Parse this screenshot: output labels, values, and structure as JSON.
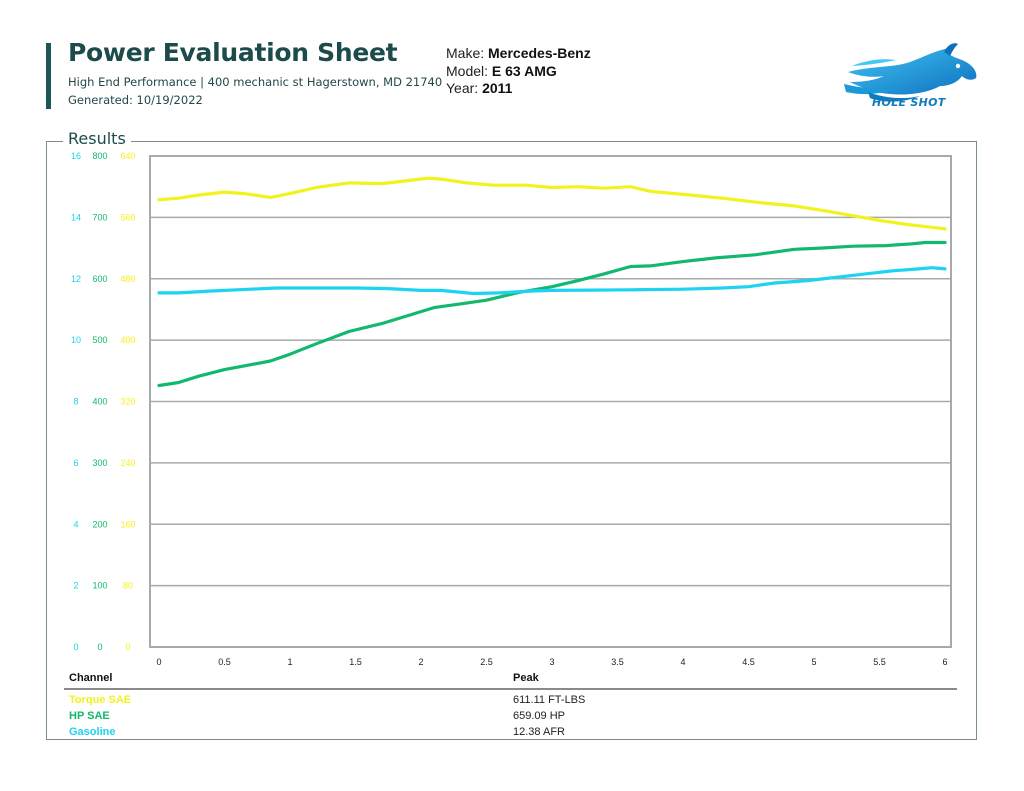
{
  "header": {
    "title": "Power Evaluation Sheet",
    "subtitle": "High End Performance | 400 mechanic st Hagerstown, MD 21740",
    "generated": "Generated: 10/19/2022"
  },
  "vehicle": {
    "make_label": "Make:",
    "make": "Mercedes-Benz",
    "model_label": "Model:",
    "model": "E 63 AMG",
    "year_label": "Year:",
    "year": "2011"
  },
  "logo": {
    "text": "HOLE SHOT",
    "icon": "horse-head-logo"
  },
  "section": {
    "label": "Results"
  },
  "colors": {
    "torque": "#f2f21e",
    "hp": "#12b86e",
    "afr": "#1ed3f2",
    "grid": "#a9a9a9",
    "frame": "#7a8e8e",
    "title": "#1d4b4b"
  },
  "chart_data": {
    "type": "line",
    "x_ticks": [
      "0",
      "0.5",
      "1",
      "1.5",
      "2",
      "2.5",
      "3",
      "3.5",
      "4",
      "4.5",
      "5",
      "5.5",
      "6"
    ],
    "xlim": [
      0,
      6
    ],
    "axes": [
      {
        "id": "afr",
        "ticks": [
          "0",
          "2",
          "4",
          "6",
          "8",
          "10",
          "12",
          "14",
          "16"
        ],
        "ylim": [
          0,
          16
        ],
        "color": "#1ed3f2"
      },
      {
        "id": "hp",
        "ticks": [
          "0",
          "100",
          "200",
          "300",
          "400",
          "500",
          "600",
          "700",
          "800"
        ],
        "ylim": [
          0,
          800
        ],
        "color": "#12b86e"
      },
      {
        "id": "torque",
        "ticks": [
          "0",
          "80",
          "160",
          "240",
          "320",
          "400",
          "480",
          "560",
          "640"
        ],
        "ylim": [
          0,
          640
        ],
        "color": "#f2f21e"
      }
    ],
    "series": [
      {
        "name": "Torque SAE",
        "axis": "torque",
        "color": "#f2f21e",
        "x": [
          0,
          0.15,
          0.3,
          0.5,
          0.65,
          0.85,
          1.0,
          1.2,
          1.45,
          1.7,
          1.9,
          2.05,
          2.15,
          2.35,
          2.55,
          2.8,
          3.0,
          3.2,
          3.4,
          3.6,
          3.75,
          4.0,
          4.3,
          4.6,
          4.85,
          5.1,
          5.3,
          5.5,
          5.7,
          5.9,
          6.0
        ],
        "y": [
          583,
          585,
          589,
          593,
          591,
          586,
          591,
          599,
          605,
          604,
          608,
          611,
          610,
          605,
          602,
          602,
          599,
          600,
          598,
          600,
          594,
          590,
          585,
          579,
          575,
          568,
          562,
          556,
          551,
          547,
          545
        ]
      },
      {
        "name": "HP SAE",
        "axis": "hp",
        "color": "#12b86e",
        "x": [
          0,
          0.15,
          0.3,
          0.5,
          0.65,
          0.85,
          1.0,
          1.2,
          1.45,
          1.7,
          1.9,
          2.1,
          2.3,
          2.5,
          2.75,
          3.0,
          3.2,
          3.4,
          3.6,
          3.75,
          4.0,
          4.25,
          4.55,
          4.85,
          5.05,
          5.3,
          5.55,
          5.75,
          5.85,
          6.0
        ],
        "y": [
          426,
          431,
          441,
          452,
          458,
          466,
          477,
          494,
          514,
          527,
          540,
          553,
          559,
          565,
          578,
          587,
          597,
          608,
          620,
          621,
          628,
          634,
          639,
          648,
          650,
          653,
          654,
          657,
          659,
          659
        ]
      },
      {
        "name": "Gasoline",
        "axis": "afr",
        "color": "#1ed3f2",
        "x": [
          0,
          0.15,
          0.4,
          0.7,
          0.9,
          1.2,
          1.5,
          1.75,
          2.0,
          2.15,
          2.4,
          2.6,
          2.85,
          3.0,
          3.3,
          3.6,
          4.0,
          4.3,
          4.5,
          4.7,
          4.95,
          5.2,
          5.4,
          5.6,
          5.8,
          5.9,
          6.0
        ],
        "y": [
          11.54,
          11.54,
          11.6,
          11.66,
          11.7,
          11.7,
          11.7,
          11.68,
          11.62,
          11.62,
          11.52,
          11.54,
          11.6,
          11.62,
          11.63,
          11.64,
          11.66,
          11.7,
          11.74,
          11.86,
          11.94,
          12.06,
          12.16,
          12.26,
          12.32,
          12.36,
          12.32
        ]
      }
    ]
  },
  "table": {
    "headers": {
      "channel": "Channel",
      "peak": "Peak"
    },
    "rows": [
      {
        "channel": "Torque SAE",
        "peak": "611.11 FT-LBS",
        "color": "#f2f21e"
      },
      {
        "channel": "HP SAE",
        "peak": "659.09 HP",
        "color": "#12b86e"
      },
      {
        "channel": "Gasoline",
        "peak": "12.38 AFR",
        "color": "#1ed3f2"
      }
    ]
  }
}
